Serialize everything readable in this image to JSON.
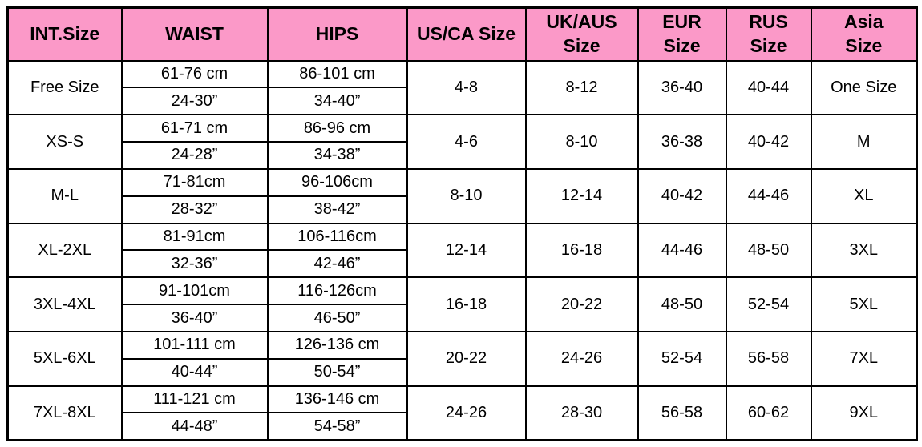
{
  "colors": {
    "header_bg": "#FB99C8",
    "border": "#000000",
    "text": "#000000"
  },
  "table": {
    "headers": [
      "INT.Size",
      "WAIST",
      "HIPS",
      "US/CA Size",
      "UK/AUS\nSize",
      "EUR\nSize",
      "RUS\nSize",
      "Asia\nSize"
    ],
    "rows": [
      {
        "int_size": "Free Size",
        "waist_cm": "61-76 cm",
        "waist_in": "24-30”",
        "hips_cm": "86-101 cm",
        "hips_in": "34-40”",
        "us_ca": "4-8",
        "uk_aus": "8-12",
        "eur": "36-40",
        "rus": "40-44",
        "asia": "One Size"
      },
      {
        "int_size": "XS-S",
        "waist_cm": "61-71 cm",
        "waist_in": "24-28”",
        "hips_cm": "86-96 cm",
        "hips_in": "34-38”",
        "us_ca": "4-6",
        "uk_aus": "8-10",
        "eur": "36-38",
        "rus": "40-42",
        "asia": "M"
      },
      {
        "int_size": "M-L",
        "waist_cm": "71-81cm",
        "waist_in": "28-32”",
        "hips_cm": "96-106cm",
        "hips_in": "38-42”",
        "us_ca": "8-10",
        "uk_aus": "12-14",
        "eur": "40-42",
        "rus": "44-46",
        "asia": "XL"
      },
      {
        "int_size": "XL-2XL",
        "waist_cm": "81-91cm",
        "waist_in": "32-36”",
        "hips_cm": "106-116cm",
        "hips_in": "42-46”",
        "us_ca": "12-14",
        "uk_aus": "16-18",
        "eur": "44-46",
        "rus": "48-50",
        "asia": "3XL"
      },
      {
        "int_size": "3XL-4XL",
        "waist_cm": "91-101cm",
        "waist_in": "36-40”",
        "hips_cm": "116-126cm",
        "hips_in": "46-50”",
        "us_ca": "16-18",
        "uk_aus": "20-22",
        "eur": "48-50",
        "rus": "52-54",
        "asia": "5XL"
      },
      {
        "int_size": "5XL-6XL",
        "waist_cm": "101-111 cm",
        "waist_in": "40-44”",
        "hips_cm": "126-136 cm",
        "hips_in": "50-54”",
        "us_ca": "20-22",
        "uk_aus": "24-26",
        "eur": "52-54",
        "rus": "56-58",
        "asia": "7XL"
      },
      {
        "int_size": "7XL-8XL",
        "waist_cm": "111-121 cm",
        "waist_in": "44-48”",
        "hips_cm": "136-146 cm",
        "hips_in": "54-58”",
        "us_ca": "24-26",
        "uk_aus": "28-30",
        "eur": "56-58",
        "rus": "60-62",
        "asia": "9XL"
      }
    ]
  }
}
